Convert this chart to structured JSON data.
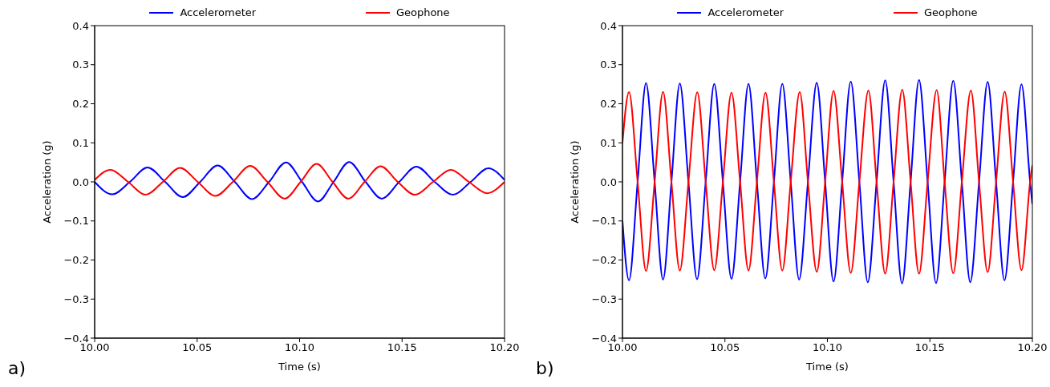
{
  "chart_data": [
    {
      "type": "line",
      "xlabel": "Time (s)",
      "ylabel": "Acceleration (g)",
      "annotations": [
        "a)"
      ],
      "legend": "top",
      "marker": "none",
      "line_style": "solid",
      "xlim": [
        10.0,
        10.2
      ],
      "ylim": [
        -0.4,
        0.4
      ],
      "xticks": [
        {
          "value": 10.0,
          "label": "10.00"
        },
        {
          "value": 10.05,
          "label": "10.05"
        },
        {
          "value": 10.1,
          "label": "10.10"
        },
        {
          "value": 10.15,
          "label": "10.15"
        },
        {
          "value": 10.2,
          "label": "10.20"
        }
      ],
      "yticks": [
        {
          "value": -0.4,
          "label": "−0.4"
        },
        {
          "value": -0.3,
          "label": "−0.3"
        },
        {
          "value": -0.2,
          "label": "−0.2"
        },
        {
          "value": -0.1,
          "label": "−0.1"
        },
        {
          "value": 0,
          "label": "0.0"
        },
        {
          "value": 0.1,
          "label": "0.1"
        },
        {
          "value": 0.2,
          "label": "0.2"
        },
        {
          "value": 0.3,
          "label": "0.3"
        },
        {
          "value": 0.4,
          "label": "0.4"
        }
      ],
      "series": [
        {
          "name": "Accelerometer",
          "color": "#0000ff",
          "x": [
            10.0,
            10.0086,
            10.0172,
            10.0258,
            10.0344,
            10.043,
            10.0515,
            10.06,
            10.0684,
            10.0768,
            10.0851,
            10.0934,
            10.1012,
            10.109,
            10.1166,
            10.1242,
            10.1322,
            10.1401,
            10.1486,
            10.157,
            10.1659,
            10.1748,
            10.1835,
            10.1921,
            10.2
          ],
          "values": [
            0,
            -0.032,
            0,
            0.037,
            0,
            -0.039,
            0,
            0.042,
            0,
            -0.044,
            0,
            0.05,
            0,
            -0.05,
            0,
            0.051,
            0,
            -0.043,
            0,
            0.039,
            0,
            -0.033,
            0,
            0.035,
            0.005
          ]
        },
        {
          "name": "Geophone",
          "color": "#ff0000",
          "x": [
            10.0,
            10.0077,
            10.0163,
            10.0248,
            10.0333,
            10.0417,
            10.0503,
            10.0589,
            10.0674,
            10.0759,
            10.0843,
            10.0927,
            10.1005,
            10.1083,
            10.1161,
            10.1238,
            10.1317,
            10.1395,
            10.1479,
            10.1563,
            10.1651,
            10.1738,
            10.1826,
            10.1914,
            10.2
          ],
          "values": [
            0.005,
            0.031,
            0,
            -0.033,
            0,
            0.036,
            0,
            -0.036,
            0,
            0.041,
            0,
            -0.043,
            0,
            0.046,
            0,
            -0.043,
            0,
            0.04,
            0,
            -0.033,
            0,
            0.031,
            0,
            -0.029,
            0
          ]
        }
      ]
    },
    {
      "type": "line",
      "xlabel": "Time (s)",
      "ylabel": "Acceleration (g)",
      "annotations": [
        "b)"
      ],
      "legend": "top",
      "marker": "none",
      "line_style": "solid",
      "xlim": [
        10.0,
        10.2
      ],
      "ylim": [
        -0.4,
        0.4
      ],
      "xticks": [
        {
          "value": 10.0,
          "label": "10.00"
        },
        {
          "value": 10.05,
          "label": "10.05"
        },
        {
          "value": 10.1,
          "label": "10.10"
        },
        {
          "value": 10.15,
          "label": "10.15"
        },
        {
          "value": 10.2,
          "label": "10.20"
        }
      ],
      "yticks": [
        {
          "value": -0.4,
          "label": "−0.4"
        },
        {
          "value": -0.3,
          "label": "−0.3"
        },
        {
          "value": -0.2,
          "label": "−0.2"
        },
        {
          "value": -0.1,
          "label": "−0.1"
        },
        {
          "value": 0,
          "label": "0.0"
        },
        {
          "value": 0.1,
          "label": "0.1"
        },
        {
          "value": 0.2,
          "label": "0.2"
        },
        {
          "value": 0.3,
          "label": "0.3"
        },
        {
          "value": 0.4,
          "label": "0.4"
        }
      ],
      "series": [
        {
          "name": "Accelerometer",
          "color": "#0000ff",
          "x": [
            10.0,
            10.0032,
            10.0074,
            10.0115,
            10.0157,
            10.0198,
            10.0239,
            10.028,
            10.0322,
            10.0364,
            10.0406,
            10.0448,
            10.049,
            10.0532,
            10.0574,
            10.0615,
            10.0656,
            10.0697,
            10.0739,
            10.078,
            10.0821,
            10.0862,
            10.0905,
            10.0948,
            10.0989,
            10.103,
            10.1072,
            10.1114,
            10.1156,
            10.1197,
            10.124,
            10.1282,
            10.1323,
            10.1364,
            10.1406,
            10.1447,
            10.1489,
            10.153,
            10.1572,
            10.1614,
            10.1656,
            10.1697,
            10.174,
            10.1782,
            10.1823,
            10.1864,
            10.1906,
            10.1947,
            10.1989,
            10.2
          ],
          "values": [
            -0.1,
            -0.252,
            0,
            0.253,
            0,
            -0.25,
            0,
            0.252,
            0,
            -0.249,
            0,
            0.251,
            0,
            -0.248,
            0,
            0.251,
            0,
            -0.247,
            0,
            0.251,
            0,
            -0.25,
            0,
            0.254,
            0,
            -0.255,
            0,
            0.257,
            0,
            -0.257,
            0,
            0.26,
            0,
            -0.26,
            0,
            0.261,
            0,
            -0.259,
            0,
            0.259,
            0,
            -0.257,
            0,
            0.256,
            0,
            -0.252,
            0,
            0.25,
            0,
            -0.057
          ]
        },
        {
          "name": "Geophone",
          "color": "#ff0000",
          "x": [
            10.0,
            10.0032,
            10.0074,
            10.0115,
            10.0157,
            10.0198,
            10.0239,
            10.028,
            10.0322,
            10.0365,
            10.0406,
            10.0448,
            10.049,
            10.0532,
            10.0574,
            10.0615,
            10.0656,
            10.0698,
            10.0739,
            10.078,
            10.0821,
            10.0865,
            10.0905,
            10.0948,
            10.0989,
            10.103,
            10.1072,
            10.1114,
            10.1156,
            10.12,
            10.124,
            10.1282,
            10.1323,
            10.1365,
            10.1406,
            10.1447,
            10.1489,
            10.1533,
            10.1572,
            10.1614,
            10.1656,
            10.17,
            10.174,
            10.1782,
            10.1823,
            10.1865,
            10.1906,
            10.1947,
            10.1989,
            10.2
          ],
          "values": [
            0.1,
            0.23,
            0,
            -0.228,
            0,
            0.23,
            0,
            -0.227,
            0,
            0.229,
            0,
            -0.226,
            0,
            0.228,
            0,
            -0.227,
            0,
            0.228,
            0,
            -0.227,
            0,
            0.23,
            0,
            -0.23,
            0,
            0.233,
            0,
            -0.233,
            0,
            0.234,
            0,
            -0.235,
            0,
            0.236,
            0,
            -0.235,
            0,
            0.235,
            0,
            -0.234,
            0,
            0.234,
            0,
            -0.231,
            0,
            0.231,
            0,
            -0.226,
            0,
            0.043
          ]
        }
      ]
    }
  ]
}
